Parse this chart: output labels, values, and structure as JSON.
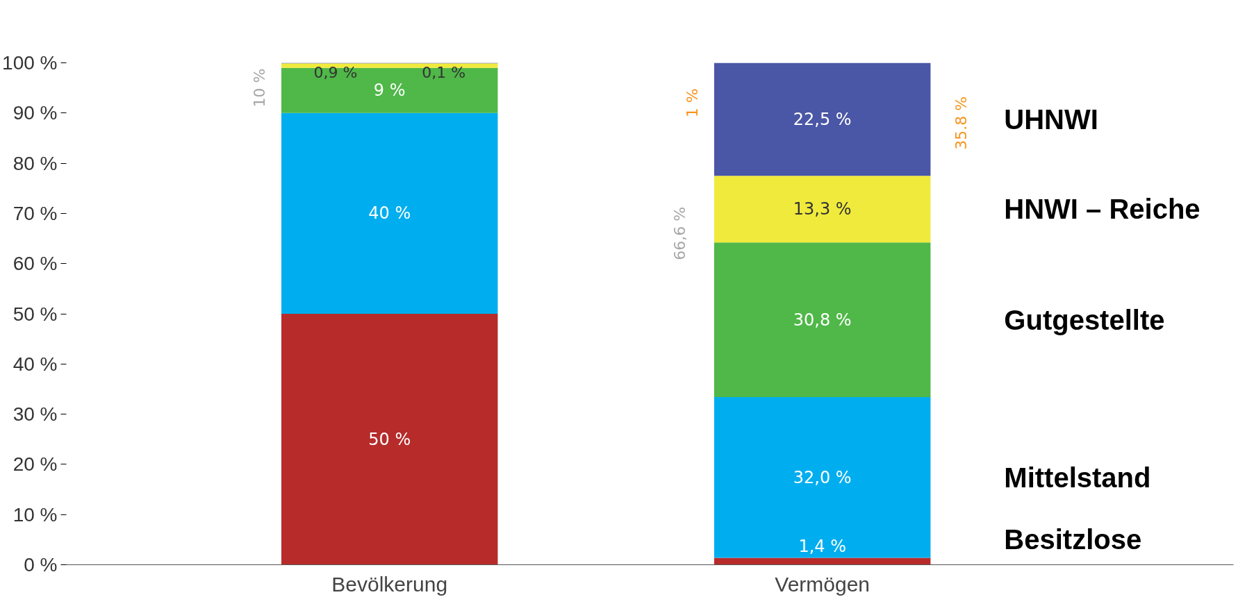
{
  "chart_data": {
    "type": "bar",
    "stacked": true,
    "categories": [
      "Bevölkerung",
      "Vermögen"
    ],
    "series": [
      {
        "name": "Besitzlose",
        "color": "#b72b2b",
        "values": [
          50,
          1.4
        ],
        "value_labels": [
          "50 %",
          "1,4 %"
        ]
      },
      {
        "name": "Mittelstand",
        "color": "#00aeef",
        "values": [
          40,
          32.0
        ],
        "value_labels": [
          "40 %",
          "32,0 %"
        ]
      },
      {
        "name": "Gutgestellte",
        "color": "#4fb848",
        "values": [
          9,
          30.8
        ],
        "value_labels": [
          "9 %",
          "30,8 %"
        ]
      },
      {
        "name": "HNWI – Reiche",
        "color": "#f0ea3c",
        "values": [
          0.9,
          13.3
        ],
        "value_labels": [
          "0,9 %",
          "13,3 %"
        ]
      },
      {
        "name": "UHNWI",
        "color": "#4a56a6",
        "values": [
          0.1,
          22.5
        ],
        "value_labels": [
          "0,1 %",
          "22,5 %"
        ]
      }
    ],
    "ylim": [
      0,
      100
    ],
    "yticks": [
      {
        "value": 0,
        "label": "0 %"
      },
      {
        "value": 10,
        "label": "10 %"
      },
      {
        "value": 20,
        "label": "20 %"
      },
      {
        "value": 30,
        "label": "30 %"
      },
      {
        "value": 40,
        "label": "40 %"
      },
      {
        "value": 50,
        "label": "50 %"
      },
      {
        "value": 60,
        "label": "60 %"
      },
      {
        "value": 70,
        "label": "70 %"
      },
      {
        "value": 80,
        "label": "80 %"
      },
      {
        "value": 90,
        "label": "90 %"
      },
      {
        "value": 100,
        "label": "100 %"
      }
    ],
    "annotations": [
      "10 %",
      "1 %",
      "66,6 %",
      "35.8 %"
    ],
    "grid": false
  }
}
